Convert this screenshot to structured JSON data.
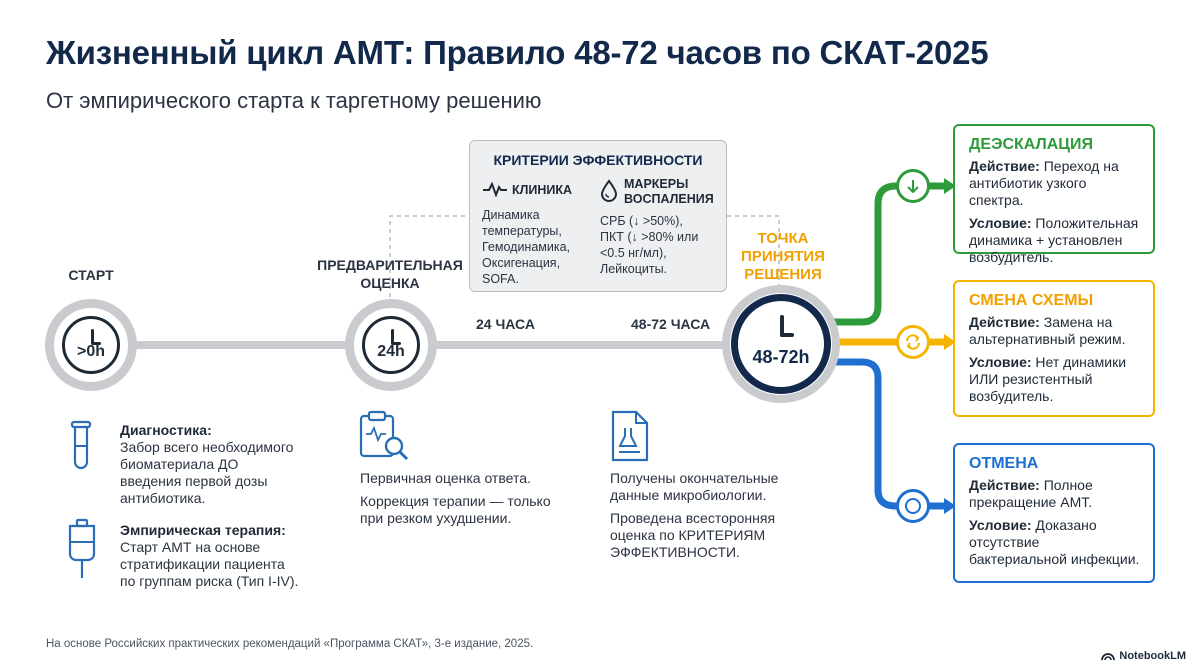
{
  "header": {
    "title": "Жизненный цикл АМТ: Правило 48-72 часов по СКАТ-2025",
    "subtitle": "От эмпирического старта к таргетному решению"
  },
  "timeline": {
    "start": {
      "label": "СТАРТ",
      "time": ">0h"
    },
    "prelim": {
      "label_line1": "ПРЕДВАРИТЕЛЬНАЯ",
      "label_line2": "ОЦЕНКА",
      "time": "24h"
    },
    "decision": {
      "label_line1": "ТОЧКА",
      "label_line2": "ПРИНЯТИЯ",
      "label_line3": "РЕШЕНИЯ",
      "time": "48-72h"
    },
    "segment_24": "24 ЧАСА",
    "segment_48_72": "48-72 ЧАСА"
  },
  "criteria": {
    "title": "КРИТЕРИИ ЭФФЕКТИВНОСТИ",
    "clinic": {
      "heading": "КЛИНИКА",
      "lines": [
        "Динамика",
        "температуры,",
        "Гемодинамика,",
        "Оксигенация,",
        "SOFA."
      ]
    },
    "markers": {
      "heading_line1": "МАРКЕРЫ",
      "heading_line2": "ВОСПАЛЕНИЯ",
      "lines": [
        "СРБ (↓ >50%),",
        "ПКТ (↓ >80% или",
        "<0.5 нг/мл),",
        "Лейкоциты."
      ]
    }
  },
  "start_info": {
    "diagnostics_head": "Диагностика:",
    "diagnostics_lines": [
      "Забор всего необходимого",
      "биоматериала ДО",
      "введения первой дозы",
      "антибиотика."
    ],
    "empiric_head": "Эмпирическая терапия:",
    "empiric_lines": [
      "Старт АМТ на основе",
      "стратификации пациента",
      "по группам риска (Тип I-IV)."
    ]
  },
  "prelim_info": {
    "line1": "Первичная оценка ответа.",
    "line2a": "Коррекция терапии — только",
    "line2b": "при резком ухудшении."
  },
  "decision_info": {
    "line1a": "Получены окончательные",
    "line1b": "данные микробиологии.",
    "line2a": "Проведена всесторонняя",
    "line2b": "оценка по КРИТЕРИЯМ",
    "line2c": "ЭФФЕКТИВНОСТИ."
  },
  "outcomes": [
    {
      "title": "ДЕЭСКАЛАЦИЯ",
      "action_label": "Действие:",
      "action_lines": [
        " Переход на",
        "антибиотик узкого спектра."
      ],
      "condition_label": "Условие:",
      "condition_lines": [
        " Положительная",
        "динамика + установлен",
        "возбудитель."
      ],
      "color": "#2e9b3a",
      "icon": "arrow-down-icon"
    },
    {
      "title": "СМЕНА СХЕМЫ",
      "action_label": "Действие:",
      "action_lines": [
        " Замена на",
        "альтернативный режим."
      ],
      "condition_label": "Условие:",
      "condition_lines": [
        " Нет динамики",
        "ИЛИ резистентный",
        "возбудитель."
      ],
      "color": "#f5b400",
      "icon": "swap-icon"
    },
    {
      "title": "ОТМЕНА",
      "action_label": "Действие:",
      "action_lines": [
        " Полное",
        "прекращение АМТ."
      ],
      "condition_label": "Условие:",
      "condition_lines": [
        " Доказано",
        "отсутствие",
        "бактериальной инфекции."
      ],
      "color": "#1f6fd1",
      "icon": "stop-icon"
    }
  ],
  "footer": {
    "source": "На основе Российских практических рекомендаций «Программа СКАТ», 3-е издание, 2025.",
    "brand": "NotebookLM"
  },
  "colors": {
    "navy": "#13294b",
    "track": "#c9cbcf",
    "green": "#2e9b3a",
    "yellow": "#f5b400",
    "blue": "#1f6fd1",
    "decision_label": "#f0a000"
  }
}
